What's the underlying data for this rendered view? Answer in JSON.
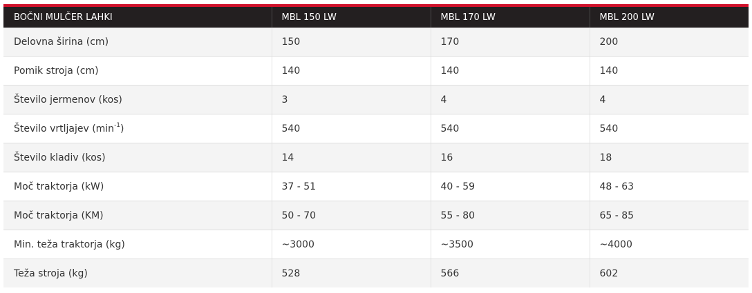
{
  "table": {
    "headers": [
      "BOČNI MULČER LAHKI",
      "MBL 150 LW",
      "MBL 170 LW",
      "MBL 200 LW"
    ],
    "rows": [
      {
        "label": "Delovna širina (cm)",
        "values": [
          "150",
          "170",
          "200"
        ]
      },
      {
        "label": "Pomik stroja (cm)",
        "values": [
          "140",
          "140",
          "140"
        ]
      },
      {
        "label": "Število jermenov (kos)",
        "values": [
          "3",
          "4",
          "4"
        ]
      },
      {
        "label": "Število vrtljajev (min",
        "label_sup": "-1",
        "label_suffix": ")",
        "values": [
          "540",
          "540",
          "540"
        ]
      },
      {
        "label": "Število kladiv (kos)",
        "values": [
          "14",
          "16",
          "18"
        ]
      },
      {
        "label": "Moč traktorja (kW)",
        "values": [
          "37 - 51",
          "40 - 59",
          "48 - 63"
        ]
      },
      {
        "label": "Moč traktorja (KM)",
        "values": [
          "50 - 70",
          "55 - 80",
          "65 - 85"
        ]
      },
      {
        "label": "Min. teža traktorja (kg)",
        "values": [
          "~3000",
          "~3500",
          "~4000"
        ]
      },
      {
        "label": "Teža stroja (kg)",
        "values": [
          "528",
          "566",
          "602"
        ]
      }
    ]
  },
  "colors": {
    "accent": "#d0112b",
    "header_bg": "#231f20",
    "stripe": "#f4f4f4"
  }
}
